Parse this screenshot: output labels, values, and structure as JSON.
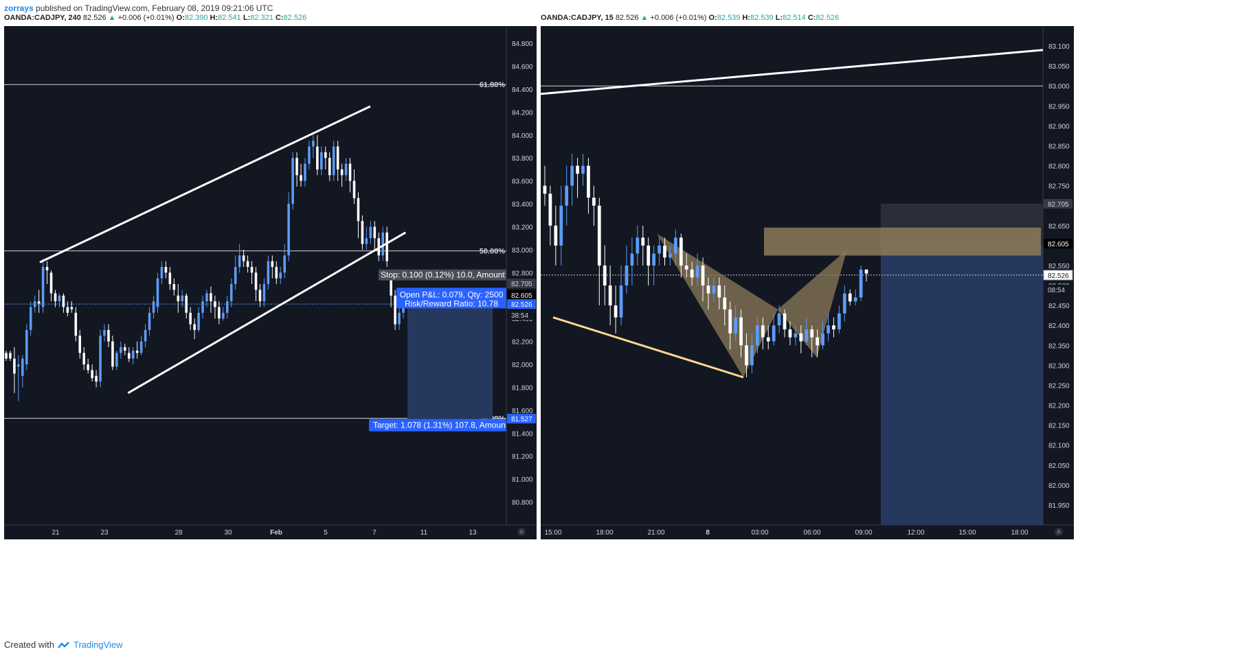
{
  "header": {
    "author": "zorrays",
    "published": "published on TradingView.com, February 08, 2019 09:21:06 UTC"
  },
  "footer": {
    "created_with": "Created with",
    "brand": "TradingView"
  },
  "colors": {
    "bg": "#131722",
    "up": "#5b9cf6",
    "down": "#ffffff",
    "green": "#26a69a",
    "pattern": "#8c7b5a",
    "trend": "#fdd98b",
    "target_zone": "#26385e"
  },
  "chart_data": [
    {
      "type": "candlestick",
      "symbol": "OANDA:CADJPY, 240",
      "price": "82.526",
      "change": "+0.006 (+0.01%)",
      "ohlc": {
        "o_label": "O:",
        "o": "82.390",
        "h_label": "H:",
        "h": "82.541",
        "l_label": "L:",
        "l": "82.321",
        "c_label": "C:",
        "c": "82.526"
      },
      "ylim": [
        80.6,
        84.95
      ],
      "yticks": [
        "84.800",
        "84.600",
        "84.400",
        "84.200",
        "84.000",
        "83.800",
        "83.600",
        "83.400",
        "83.200",
        "83.000",
        "82.800",
        "82.600",
        "82.400",
        "82.200",
        "82.000",
        "81.800",
        "81.600",
        "81.400",
        "81.200",
        "81.000",
        "80.800"
      ],
      "xticks": [
        "21",
        "23",
        "28",
        "30",
        "Feb",
        "5",
        "7",
        "11",
        "13"
      ],
      "fib_levels": [
        {
          "label": "61.80%",
          "value": 84.44
        },
        {
          "label": "50.00%",
          "value": 82.99
        },
        {
          "label": "38.20%",
          "value": 81.53
        }
      ],
      "price_tags": [
        {
          "text": "82.705",
          "value": 82.705,
          "style": "gray"
        },
        {
          "text": "82.605",
          "value": 82.605,
          "style": "black"
        },
        {
          "text": "82.526",
          "value": 82.526,
          "style": "blue"
        },
        {
          "text": "38:54",
          "value": 82.43,
          "style": "timer"
        },
        {
          "text": "81.527",
          "value": 81.527,
          "style": "blue"
        }
      ],
      "position_labels": {
        "stop": "Stop: 0.100 (0.12%) 10.0, Amount",
        "pnl": "Open P&L: 0.079, Qty: 2500",
        "rr": "Risk/Reward Ratio: 10.78",
        "target": "Target: 1.078 (1.31%) 107.8, Amoun"
      },
      "position": {
        "entry": 82.605,
        "stop": 82.705,
        "target": 81.527
      },
      "channel": [
        {
          "x1": 20.5,
          "y1": 82.89,
          "x2": 28,
          "y2": 84.25
        },
        {
          "x1": 22.5,
          "y1": 81.75,
          "x2": 28.8,
          "y2": 83.15
        }
      ],
      "candles": [
        [
          82.1,
          82.05,
          82.12,
          82.03
        ],
        [
          82.1,
          82.05,
          82.12,
          82.03
        ],
        [
          82.05,
          81.92,
          82.15,
          81.75
        ],
        [
          81.98,
          82.0,
          82.08,
          81.68
        ],
        [
          81.9,
          82.05,
          82.08,
          81.8
        ],
        [
          82.0,
          82.3,
          82.35,
          81.95
        ],
        [
          82.3,
          82.5,
          82.55,
          82.25
        ],
        [
          82.5,
          82.55,
          82.6,
          82.45
        ],
        [
          82.55,
          82.53,
          82.65,
          82.45
        ],
        [
          82.5,
          82.85,
          82.92,
          82.45
        ],
        [
          82.85,
          82.82,
          82.9,
          82.7
        ],
        [
          82.8,
          82.62,
          82.82,
          82.55
        ],
        [
          82.62,
          82.55,
          82.65,
          82.5
        ],
        [
          82.55,
          82.6,
          82.62,
          82.5
        ],
        [
          82.6,
          82.5,
          82.62,
          82.45
        ],
        [
          82.5,
          82.45,
          82.55,
          82.42
        ],
        [
          82.5,
          82.48,
          82.55,
          82.45
        ],
        [
          82.45,
          82.25,
          82.5,
          82.2
        ],
        [
          82.25,
          82.1,
          82.3,
          82.05
        ],
        [
          82.1,
          82.0,
          82.15,
          81.95
        ],
        [
          82.0,
          81.95,
          82.05,
          81.92
        ],
        [
          81.95,
          81.88,
          82.0,
          81.85
        ],
        [
          81.9,
          81.85,
          81.95,
          81.8
        ],
        [
          81.85,
          82.25,
          82.3,
          81.8
        ],
        [
          82.25,
          82.3,
          82.35,
          82.2
        ],
        [
          82.3,
          82.2,
          82.35,
          82.15
        ],
        [
          82.2,
          81.98,
          82.25,
          81.95
        ],
        [
          81.98,
          82.1,
          82.12,
          81.95
        ],
        [
          82.1,
          82.15,
          82.2,
          82.05
        ],
        [
          82.15,
          82.12,
          82.18,
          82.08
        ],
        [
          82.1,
          82.05,
          82.15,
          82.02
        ],
        [
          82.05,
          82.12,
          82.15,
          82.0
        ],
        [
          82.12,
          82.1,
          82.2,
          82.05
        ],
        [
          82.1,
          82.2,
          82.25,
          82.08
        ],
        [
          82.2,
          82.3,
          82.35,
          82.15
        ],
        [
          82.3,
          82.45,
          82.5,
          82.25
        ],
        [
          82.45,
          82.55,
          82.6,
          82.4
        ],
        [
          82.5,
          82.75,
          82.8,
          82.45
        ],
        [
          82.75,
          82.85,
          82.9,
          82.7
        ],
        [
          82.85,
          82.8,
          82.9,
          82.75
        ],
        [
          82.8,
          82.7,
          82.85,
          82.65
        ],
        [
          82.7,
          82.65,
          82.75,
          82.6
        ],
        [
          82.6,
          82.55,
          82.7,
          82.45
        ],
        [
          82.55,
          82.6,
          82.65,
          82.5
        ],
        [
          82.6,
          82.45,
          82.62,
          82.4
        ],
        [
          82.45,
          82.35,
          82.5,
          82.3
        ],
        [
          82.35,
          82.3,
          82.4,
          82.22
        ],
        [
          82.3,
          82.45,
          82.5,
          82.28
        ],
        [
          82.45,
          82.55,
          82.6,
          82.4
        ],
        [
          82.55,
          82.62,
          82.65,
          82.5
        ],
        [
          82.62,
          82.55,
          82.68,
          82.45
        ],
        [
          82.55,
          82.5,
          82.6,
          82.4
        ],
        [
          82.5,
          82.4,
          82.55,
          82.35
        ],
        [
          82.4,
          82.45,
          82.5,
          82.38
        ],
        [
          82.45,
          82.55,
          82.6,
          82.4
        ],
        [
          82.55,
          82.7,
          82.75,
          82.5
        ],
        [
          82.7,
          82.85,
          82.95,
          82.65
        ],
        [
          82.85,
          82.95,
          83.05,
          82.8
        ],
        [
          82.95,
          82.9,
          83.0,
          82.85
        ],
        [
          82.9,
          82.85,
          82.95,
          82.8
        ],
        [
          82.85,
          82.8,
          82.9,
          82.7
        ],
        [
          82.8,
          82.65,
          82.85,
          82.55
        ],
        [
          82.65,
          82.55,
          82.7,
          82.5
        ],
        [
          82.55,
          82.7,
          82.75,
          82.5
        ],
        [
          82.7,
          82.9,
          82.95,
          82.65
        ],
        [
          82.9,
          82.85,
          82.95,
          82.75
        ],
        [
          82.85,
          82.75,
          82.9,
          82.7
        ],
        [
          82.75,
          82.8,
          82.85,
          82.7
        ],
        [
          82.8,
          82.95,
          83.05,
          82.75
        ],
        [
          82.95,
          83.4,
          83.5,
          82.9
        ],
        [
          83.4,
          83.8,
          83.85,
          83.35
        ],
        [
          83.8,
          83.65,
          83.85,
          83.55
        ],
        [
          83.65,
          83.6,
          83.75,
          83.55
        ],
        [
          83.6,
          83.75,
          83.8,
          83.55
        ],
        [
          83.75,
          83.9,
          83.95,
          83.7
        ],
        [
          83.9,
          83.95,
          84.0,
          83.8
        ],
        [
          83.9,
          83.7,
          84.0,
          83.65
        ],
        [
          83.7,
          83.85,
          83.9,
          83.65
        ],
        [
          83.85,
          83.8,
          83.9,
          83.7
        ],
        [
          83.8,
          83.65,
          83.85,
          83.6
        ],
        [
          83.65,
          83.9,
          83.95,
          83.6
        ],
        [
          83.9,
          83.7,
          83.95,
          83.6
        ],
        [
          83.7,
          83.65,
          83.75,
          83.55
        ],
        [
          83.65,
          83.75,
          83.8,
          83.6
        ],
        [
          83.75,
          83.6,
          83.8,
          83.5
        ],
        [
          83.6,
          83.45,
          83.7,
          83.4
        ],
        [
          83.45,
          83.25,
          83.5,
          83.1
        ],
        [
          83.25,
          83.05,
          83.3,
          83.0
        ],
        [
          83.05,
          83.1,
          83.2,
          83.0
        ],
        [
          83.1,
          83.2,
          83.25,
          83.05
        ],
        [
          83.2,
          83.1,
          83.25,
          83.0
        ],
        [
          83.1,
          82.95,
          83.15,
          82.9
        ],
        [
          82.95,
          83.15,
          83.2,
          82.9
        ],
        [
          83.15,
          82.9,
          83.2,
          82.85
        ],
        [
          82.75,
          82.6,
          82.78,
          82.5
        ],
        [
          82.6,
          82.35,
          82.65,
          82.3
        ],
        [
          82.35,
          82.45,
          82.5,
          82.3
        ],
        [
          82.45,
          82.55,
          82.6,
          82.4
        ]
      ]
    },
    {
      "type": "candlestick",
      "symbol": "OANDA:CADJPY, 15",
      "price": "82.526",
      "change": "+0.006 (+0.01%)",
      "ohlc": {
        "o_label": "O:",
        "o": "82.539",
        "h_label": "H:",
        "h": "82.539",
        "l_label": "L:",
        "l": "82.514",
        "c_label": "C:",
        "c": "82.526"
      },
      "ylim": [
        81.9,
        83.15
      ],
      "yticks": [
        "83.100",
        "83.050",
        "83.000",
        "82.950",
        "82.900",
        "82.850",
        "82.800",
        "82.750",
        "82.700",
        "82.650",
        "82.600",
        "82.550",
        "82.500",
        "82.450",
        "82.400",
        "82.350",
        "82.300",
        "82.250",
        "82.200",
        "82.150",
        "82.100",
        "82.050",
        "82.000",
        "81.950"
      ],
      "xticks": [
        "15:00",
        "18:00",
        "21:00",
        "8",
        "03:00",
        "06:00",
        "09:00",
        "12:00",
        "15:00",
        "18:00"
      ],
      "level_line": 83.0,
      "price_tags": [
        {
          "text": "82.705",
          "value": 82.705,
          "style": "gray"
        },
        {
          "text": "82.605",
          "value": 82.605,
          "style": "black"
        },
        {
          "text": "82.526",
          "value": 82.526,
          "style": "white"
        },
        {
          "text": "08:54",
          "value": 82.49,
          "style": "timer"
        }
      ],
      "position": {
        "entry": 82.605,
        "stop": 82.705
      },
      "resistance_line": {
        "x1": 0,
        "y1": 82.98,
        "x2": 1,
        "y2": 83.09
      },
      "supply_zone": {
        "top": 82.645,
        "bottom": 82.575
      },
      "pattern_points": [
        {
          "time": "21:00",
          "value": 82.63
        },
        {
          "time": "02:00",
          "value": 82.27
        },
        {
          "time": "04:00",
          "value": 82.44
        },
        {
          "time": "06:15",
          "value": 82.32
        },
        {
          "time": "08:00",
          "value": 82.59
        }
      ],
      "trendline": [
        {
          "time": "02:00",
          "value": 82.27
        },
        {
          "time": "15:00",
          "value": 82.42
        }
      ],
      "candles": [
        [
          82.75,
          82.73,
          82.8,
          82.7
        ],
        [
          82.73,
          82.65,
          82.75,
          82.6
        ],
        [
          82.65,
          82.6,
          82.7,
          82.55
        ],
        [
          82.6,
          82.7,
          82.75,
          82.55
        ],
        [
          82.7,
          82.75,
          82.8,
          82.65
        ],
        [
          82.75,
          82.8,
          82.83,
          82.7
        ],
        [
          82.8,
          82.78,
          82.82,
          82.72
        ],
        [
          82.78,
          82.8,
          82.83,
          82.75
        ],
        [
          82.8,
          82.72,
          82.82,
          82.68
        ],
        [
          82.72,
          82.7,
          82.75,
          82.65
        ],
        [
          82.7,
          82.55,
          82.72,
          82.45
        ],
        [
          82.55,
          82.5,
          82.6,
          82.45
        ],
        [
          82.5,
          82.45,
          82.55,
          82.4
        ],
        [
          82.45,
          82.42,
          82.5,
          82.38
        ],
        [
          82.42,
          82.5,
          82.55,
          82.4
        ],
        [
          82.5,
          82.55,
          82.6,
          82.48
        ],
        [
          82.55,
          82.58,
          82.62,
          82.5
        ],
        [
          82.58,
          82.62,
          82.65,
          82.55
        ],
        [
          82.62,
          82.6,
          82.65,
          82.55
        ],
        [
          82.6,
          82.55,
          82.62,
          82.5
        ],
        [
          82.55,
          82.58,
          82.6,
          82.5
        ],
        [
          82.58,
          82.6,
          82.62,
          82.55
        ],
        [
          82.6,
          82.57,
          82.62,
          82.55
        ],
        [
          82.57,
          82.58,
          82.6,
          82.55
        ],
        [
          82.58,
          82.62,
          82.64,
          82.55
        ],
        [
          82.62,
          82.55,
          82.63,
          82.52
        ],
        [
          82.55,
          82.54,
          82.58,
          82.52
        ],
        [
          82.54,
          82.52,
          82.56,
          82.5
        ],
        [
          82.52,
          82.55,
          82.58,
          82.5
        ],
        [
          82.55,
          82.5,
          82.57,
          82.46
        ],
        [
          82.5,
          82.48,
          82.52,
          82.44
        ],
        [
          82.48,
          82.5,
          82.52,
          82.46
        ],
        [
          82.5,
          82.47,
          82.52,
          82.44
        ],
        [
          82.47,
          82.44,
          82.5,
          82.4
        ],
        [
          82.44,
          82.38,
          82.46,
          82.34
        ],
        [
          82.38,
          82.42,
          82.45,
          82.36
        ],
        [
          82.42,
          82.35,
          82.44,
          82.32
        ],
        [
          82.35,
          82.3,
          82.38,
          82.27
        ],
        [
          82.3,
          82.35,
          82.38,
          82.28
        ],
        [
          82.35,
          82.4,
          82.42,
          82.33
        ],
        [
          82.4,
          82.37,
          82.42,
          82.34
        ],
        [
          82.37,
          82.36,
          82.4,
          82.34
        ],
        [
          82.36,
          82.4,
          82.43,
          82.35
        ],
        [
          82.4,
          82.43,
          82.45,
          82.38
        ],
        [
          82.43,
          82.39,
          82.44,
          82.37
        ],
        [
          82.39,
          82.37,
          82.41,
          82.35
        ],
        [
          82.37,
          82.38,
          82.4,
          82.35
        ],
        [
          82.38,
          82.36,
          82.4,
          82.33
        ],
        [
          82.36,
          82.39,
          82.42,
          82.35
        ],
        [
          82.39,
          82.37,
          82.4,
          82.32
        ],
        [
          82.37,
          82.35,
          82.39,
          82.32
        ],
        [
          82.35,
          82.38,
          82.41,
          82.34
        ],
        [
          82.38,
          82.4,
          82.43,
          82.36
        ],
        [
          82.4,
          82.39,
          82.42,
          82.37
        ],
        [
          82.39,
          82.43,
          82.45,
          82.38
        ],
        [
          82.43,
          82.48,
          82.5,
          82.41
        ],
        [
          82.48,
          82.46,
          82.49,
          82.45
        ],
        [
          82.46,
          82.47,
          82.49,
          82.45
        ],
        [
          82.47,
          82.54,
          82.55,
          82.46
        ],
        [
          82.54,
          82.53,
          82.54,
          82.51
        ]
      ]
    }
  ]
}
